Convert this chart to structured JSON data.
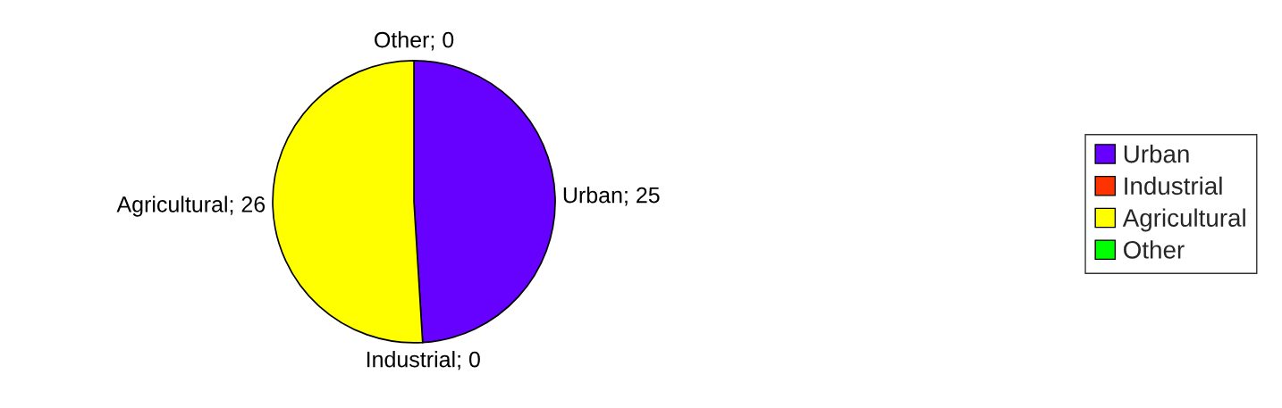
{
  "chart_data": {
    "type": "pie",
    "categories": [
      "Urban",
      "Industrial",
      "Agricultural",
      "Other"
    ],
    "values": [
      25,
      0,
      26,
      0
    ],
    "colors": [
      "#6600ff",
      "#ff3300",
      "#ffff00",
      "#00ff00"
    ],
    "value_labels": [
      "Urban; 25",
      "Industrial; 0",
      "Agricultural; 26",
      "Other; 0"
    ],
    "legend": "right"
  }
}
